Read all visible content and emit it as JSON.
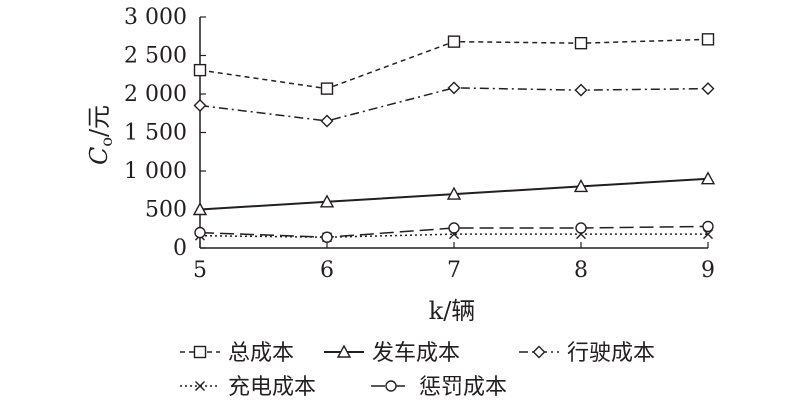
{
  "chart_data": {
    "type": "line",
    "xlabel": "k/辆",
    "ylabel_main": "C",
    "ylabel_sub": "o",
    "ylabel_unit": "/元",
    "x": [
      5,
      6,
      7,
      8,
      9
    ],
    "x_ticks": [
      "5",
      "6",
      "7",
      "8",
      "9"
    ],
    "xlim": [
      5,
      9
    ],
    "ylim": [
      0,
      3000
    ],
    "y_ticks": [
      {
        "value": 0,
        "label": "0"
      },
      {
        "value": 500,
        "label": "500"
      },
      {
        "value": 1000,
        "label": "1 000"
      },
      {
        "value": 1500,
        "label": "1 500"
      },
      {
        "value": 2000,
        "label": "2 000"
      },
      {
        "value": 2500,
        "label": "2 500"
      },
      {
        "value": 3000,
        "label": "3 000"
      }
    ],
    "grid": false,
    "legend_position": "bottom",
    "series": [
      {
        "name": "总成本",
        "values": [
          2310,
          2070,
          2680,
          2660,
          2710
        ],
        "line": "dash",
        "marker": "square"
      },
      {
        "name": "发车成本",
        "values": [
          500,
          600,
          700,
          800,
          900
        ],
        "line": "solid",
        "marker": "triangle"
      },
      {
        "name": "行驶成本",
        "values": [
          1850,
          1650,
          2080,
          2050,
          2070
        ],
        "line": "dashdot",
        "marker": "diamond"
      },
      {
        "name": "充电成本",
        "values": [
          160,
          140,
          180,
          180,
          180
        ],
        "line": "dotted",
        "marker": "x"
      },
      {
        "name": "惩罚成本",
        "values": [
          200,
          140,
          260,
          260,
          280
        ],
        "line": "longdash",
        "marker": "circle"
      }
    ]
  }
}
